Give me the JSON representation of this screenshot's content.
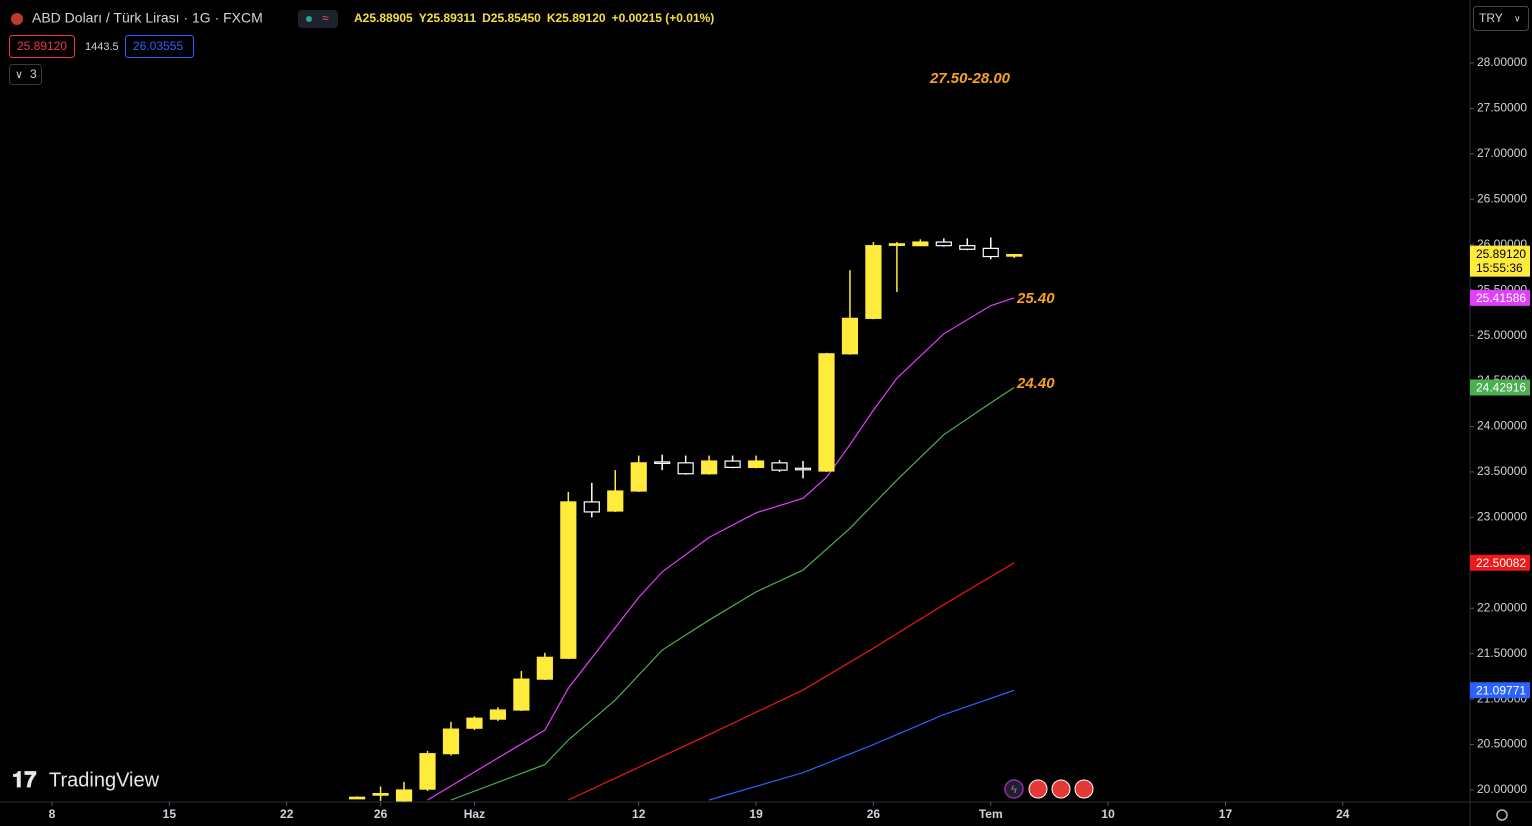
{
  "ui": {
    "symbol": "ABD Doları / Türk Lirası · 1G · FXCM",
    "ohlc": [
      "A25.88905",
      "Y25.89311",
      "D25.85450",
      "K25.89120",
      "+0.00215 (+0.01%)"
    ],
    "sell": "25.89120",
    "spread": "1443.5",
    "buy": "26.03555",
    "indicators": "3",
    "currency": "TRY",
    "watermark": "TradingView"
  },
  "chart_data": {
    "type": "candlestick",
    "x": [
      13,
      14,
      15,
      16,
      17,
      18,
      19,
      20,
      21,
      22,
      23,
      24,
      25,
      26,
      27,
      28,
      29,
      30,
      31,
      32,
      33,
      34,
      35,
      36,
      37,
      38,
      39,
      40,
      41
    ],
    "open": [
      19.91,
      19.95,
      19.88,
      20.01,
      20.4,
      20.68,
      20.78,
      20.88,
      21.22,
      21.45,
      23.17,
      23.07,
      23.29,
      23.61,
      23.6,
      23.48,
      23.62,
      23.55,
      23.6,
      23.54,
      23.51,
      24.8,
      25.19,
      26.0,
      25.99,
      26.03,
      25.99,
      25.96,
      25.88905
    ],
    "high": [
      19.93,
      20.04,
      20.09,
      20.43,
      20.75,
      20.81,
      20.91,
      21.31,
      21.51,
      23.28,
      23.38,
      23.52,
      23.68,
      23.69,
      23.68,
      23.68,
      23.68,
      23.68,
      23.63,
      23.62,
      24.81,
      25.72,
      26.03,
      26.03,
      26.06,
      26.07,
      26.07,
      26.08,
      25.89311
    ],
    "low": [
      19.9,
      19.88,
      19.87,
      19.99,
      20.38,
      20.66,
      20.76,
      20.87,
      21.21,
      21.44,
      23.0,
      23.06,
      23.28,
      23.52,
      23.47,
      23.47,
      23.54,
      23.54,
      23.5,
      23.43,
      23.5,
      24.79,
      25.18,
      25.48,
      25.99,
      25.98,
      25.94,
      25.84,
      25.8545
    ],
    "close": [
      19.92,
      19.96,
      20.0,
      20.4,
      20.67,
      20.79,
      20.88,
      21.22,
      21.46,
      23.17,
      23.06,
      23.29,
      23.6,
      23.6,
      23.48,
      23.62,
      23.55,
      23.62,
      23.52,
      23.53,
      24.8,
      25.19,
      25.99,
      26.01,
      26.03,
      25.99,
      25.95,
      25.87,
      25.8912
    ],
    "up_color": "#ffeb3b",
    "down_color": "#000000",
    "down_border": "#ffffff",
    "series": [
      {
        "color": "#e040fb",
        "x": [
          16,
          21,
          22,
          25,
          26,
          28,
          30,
          32,
          33,
          34,
          35,
          36,
          38,
          40,
          41
        ],
        "values": [
          19.89,
          20.66,
          21.12,
          22.12,
          22.4,
          22.78,
          23.05,
          23.21,
          23.44,
          23.8,
          24.18,
          24.53,
          25.02,
          25.33,
          25.41586
        ]
      },
      {
        "color": "#4caf50",
        "x": [
          17,
          21,
          22,
          24,
          26,
          28,
          30,
          32,
          34,
          36,
          38,
          40,
          41
        ],
        "values": [
          19.89,
          20.28,
          20.55,
          20.99,
          21.54,
          21.87,
          22.18,
          22.42,
          22.88,
          23.41,
          23.91,
          24.26,
          24.42916
        ]
      },
      {
        "color": "#f01818",
        "x": [
          22,
          28,
          32,
          35,
          38,
          41
        ],
        "values": [
          19.89,
          20.61,
          21.1,
          21.56,
          22.04,
          22.50082
        ]
      },
      {
        "color": "#2962ff",
        "x": [
          28,
          32,
          35,
          38,
          41
        ],
        "values": [
          19.89,
          20.19,
          20.5,
          20.83,
          21.09771
        ]
      }
    ],
    "last_price": {
      "value": 25.8912,
      "label": "25.89120"
    },
    "countdown": "15:55:36",
    "annotations": [
      "27.50-28.00",
      "25.40",
      "24.40"
    ],
    "xlim": [
      -2.216,
      60.42
    ],
    "xticks": [
      {
        "value": 0,
        "label": "8"
      },
      {
        "value": 5,
        "label": "15"
      },
      {
        "value": 10,
        "label": "22"
      },
      {
        "value": 14,
        "label": "26"
      },
      {
        "value": 18,
        "label": "Haz"
      },
      {
        "value": 25,
        "label": "12"
      },
      {
        "value": 30,
        "label": "19"
      },
      {
        "value": 35,
        "label": "26"
      },
      {
        "value": 40,
        "label": "Tem"
      },
      {
        "value": 45,
        "label": "10"
      },
      {
        "value": 50,
        "label": "17"
      },
      {
        "value": 55,
        "label": "24"
      }
    ],
    "ylim": [
      19.868,
      28.693
    ],
    "yticks": [
      {
        "value": 20,
        "label": "20.00000"
      },
      {
        "value": 20.5,
        "label": "20.50000"
      },
      {
        "value": 21,
        "label": "21.00000"
      },
      {
        "value": 21.5,
        "label": "21.50000"
      },
      {
        "value": 22,
        "label": "22.00000"
      },
      {
        "value": 22.5,
        "label": "22.50000"
      },
      {
        "value": 23,
        "label": "23.00000"
      },
      {
        "value": 23.5,
        "label": "23.50000"
      },
      {
        "value": 24,
        "label": "24.00000"
      },
      {
        "value": 24.5,
        "label": "24.50000"
      },
      {
        "value": 25,
        "label": "25.00000"
      },
      {
        "value": 25.5,
        "label": "25.50000"
      },
      {
        "value": 26,
        "label": "26.00000"
      },
      {
        "value": 26.5,
        "label": "26.50000"
      },
      {
        "value": 27,
        "label": "27.00000"
      },
      {
        "value": 27.5,
        "label": "27.50000"
      },
      {
        "value": 28,
        "label": "28.00000"
      }
    ]
  }
}
